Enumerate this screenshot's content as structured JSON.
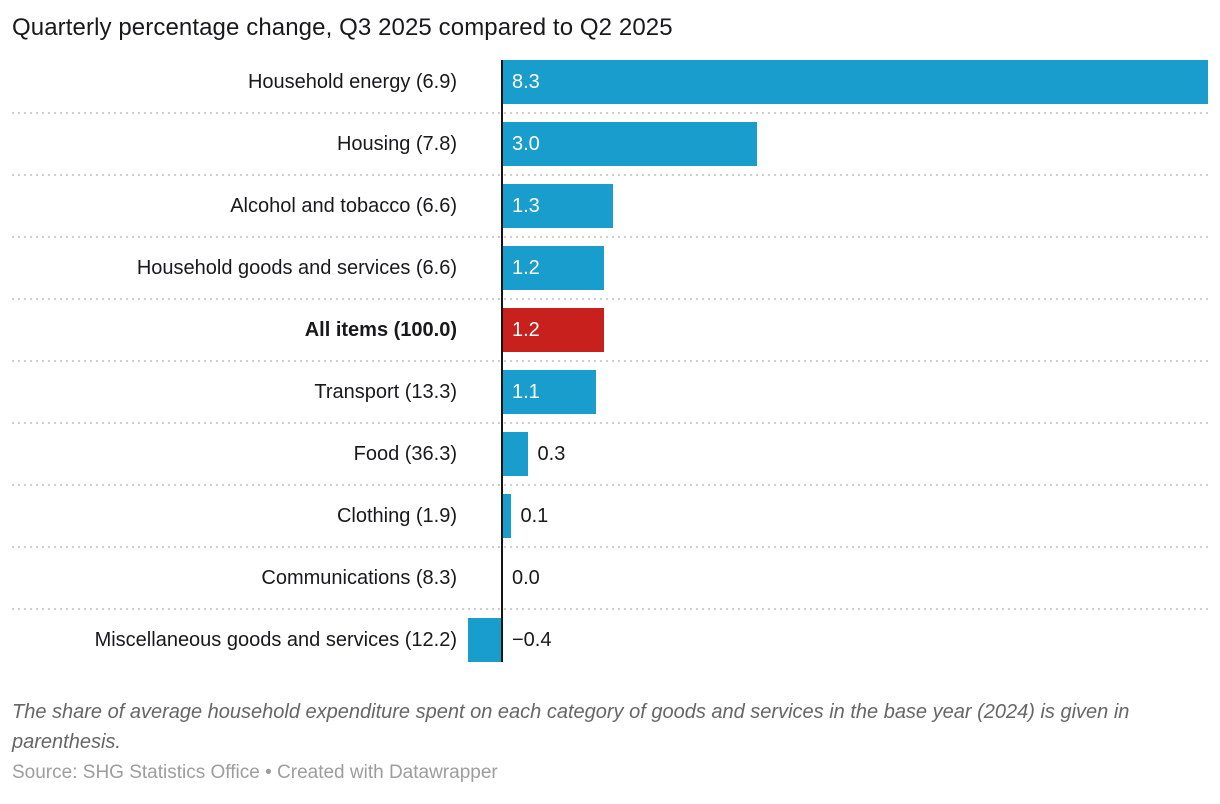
{
  "header": {
    "title": "Quarterly percentage change, Q3 2025 compared to Q2 2025"
  },
  "chart_data": {
    "type": "bar",
    "orientation": "horizontal",
    "title": "Quarterly percentage change, Q3 2025 compared to Q2 2025",
    "categories": [
      "Household energy (6.9)",
      "Housing (7.8)",
      "Alcohol and tobacco (6.6)",
      "Household goods and services (6.6)",
      "All items (100.0)",
      "Transport (13.3)",
      "Food (36.3)",
      "Clothing (1.9)",
      "Communications (8.3)",
      "Miscellaneous goods and services (12.2)"
    ],
    "values": [
      8.3,
      3.0,
      1.3,
      1.2,
      1.2,
      1.1,
      0.3,
      0.1,
      0.0,
      -0.4
    ],
    "value_labels": [
      "8.3",
      "3.0",
      "1.3",
      "1.2",
      "1.2",
      "1.1",
      "0.3",
      "0.1",
      "0.0",
      "−0.4"
    ],
    "highlight_index": 4,
    "highlight_category": "All items (100.0)",
    "xlim": [
      -0.5,
      8.3
    ],
    "bar_color": "#189dcc",
    "highlight_color": "#c8201d",
    "axis_color": "#141414",
    "separator_style": "dotted",
    "legend": "none",
    "xlabel": "",
    "ylabel": ""
  },
  "footer": {
    "note": "The share of average household expenditure spent on each category of goods and services in the base year (2024) is given in parenthesis.",
    "source_label": "Source:",
    "source_name": "SHG Statistics Office",
    "separator": "•",
    "attribution": "Created with Datawrapper"
  }
}
